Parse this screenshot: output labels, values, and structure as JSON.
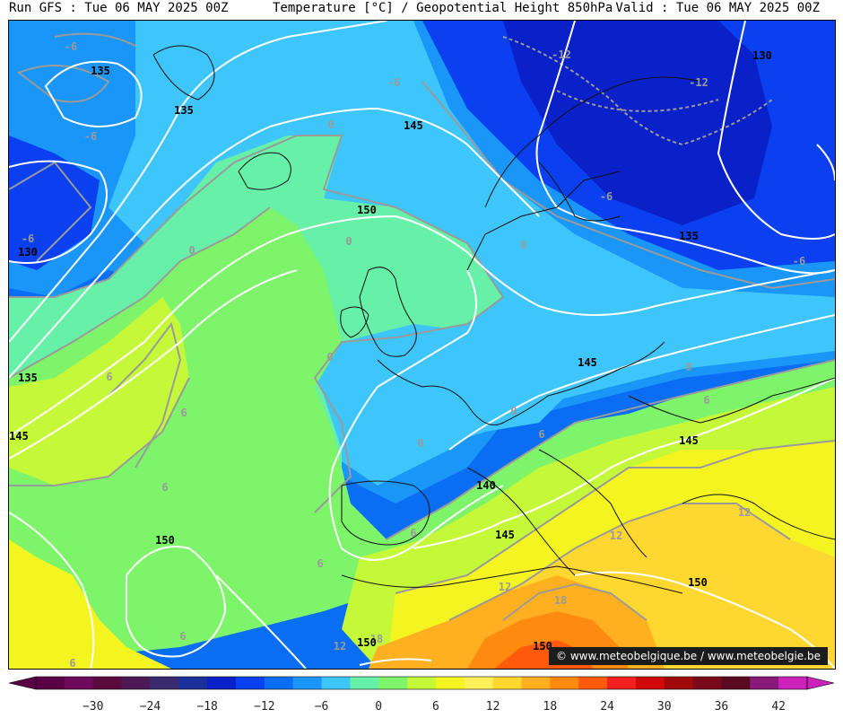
{
  "header": {
    "run": "Run GFS : Tue 06 MAY 2025 00Z",
    "title": "Temperature [°C] / Geopotential Height 850hPa",
    "valid": "Valid : Tue 06 MAY 2025 00Z"
  },
  "credit": "© www.meteobelgique.be / www.meteobelgie.be",
  "colorbar": {
    "colors": [
      "#5a0045",
      "#6e0a5a",
      "#5a0a3c",
      "#4e1a55",
      "#3a2a70",
      "#1a2f9a",
      "#0a20c8",
      "#0a40f0",
      "#0a6ef5",
      "#1a96f8",
      "#3ec6fa",
      "#66f0a8",
      "#7ef46a",
      "#c6f83a",
      "#f4f420",
      "#fff05a",
      "#fed830",
      "#ffb020",
      "#ff8a10",
      "#ff5a0a",
      "#f42020",
      "#d00a0a",
      "#a00a0a",
      "#7a0a1a",
      "#5a0a20",
      "#8a1a7a",
      "#cc22bb"
    ],
    "ticks": [
      "−30",
      "−24",
      "−18",
      "−12",
      "−6",
      "0",
      "6",
      "12",
      "18",
      "24",
      "30",
      "36",
      "42"
    ],
    "tick_values": [
      -30,
      -24,
      -18,
      -12,
      -6,
      0,
      6,
      12,
      18,
      24,
      30,
      36,
      42
    ],
    "min": -36,
    "max": 45
  },
  "labels": {
    "temperature": {
      "m12_a": "-12",
      "m12_b": "-12",
      "m6_a": "-6",
      "m6_b": "-6",
      "m6_c": "-6",
      "m6_d": "-6",
      "m6_e": "-6",
      "m6_f": "-6",
      "z_a": "0",
      "z_b": "0",
      "z_c": "0",
      "z_d": "0",
      "z_e": "0",
      "z_f": "0",
      "z_g": "0",
      "z_h": "0",
      "s_a": "6",
      "s_b": "6",
      "s_c": "6",
      "s_d": "6",
      "s_e": "6",
      "s_f": "6",
      "s_g": "6",
      "s_h": "6",
      "s_i": "6",
      "t_a": "12",
      "t_b": "12",
      "t_c": "12",
      "t_d": "12",
      "e_a": "18",
      "e_b": "18"
    },
    "height": {
      "h130_a": "130",
      "h130_b": "130",
      "h135_a": "135",
      "h135_b": "135",
      "h135_c": "135",
      "h135_d": "135",
      "h140": "140",
      "h145_a": "145",
      "h145_b": "145",
      "h145_c": "145",
      "h145_d": "145",
      "h145_e": "145",
      "h150_a": "150",
      "h150_b": "150",
      "h150_c": "150",
      "h150_d": "150",
      "h150_e": "150"
    }
  }
}
